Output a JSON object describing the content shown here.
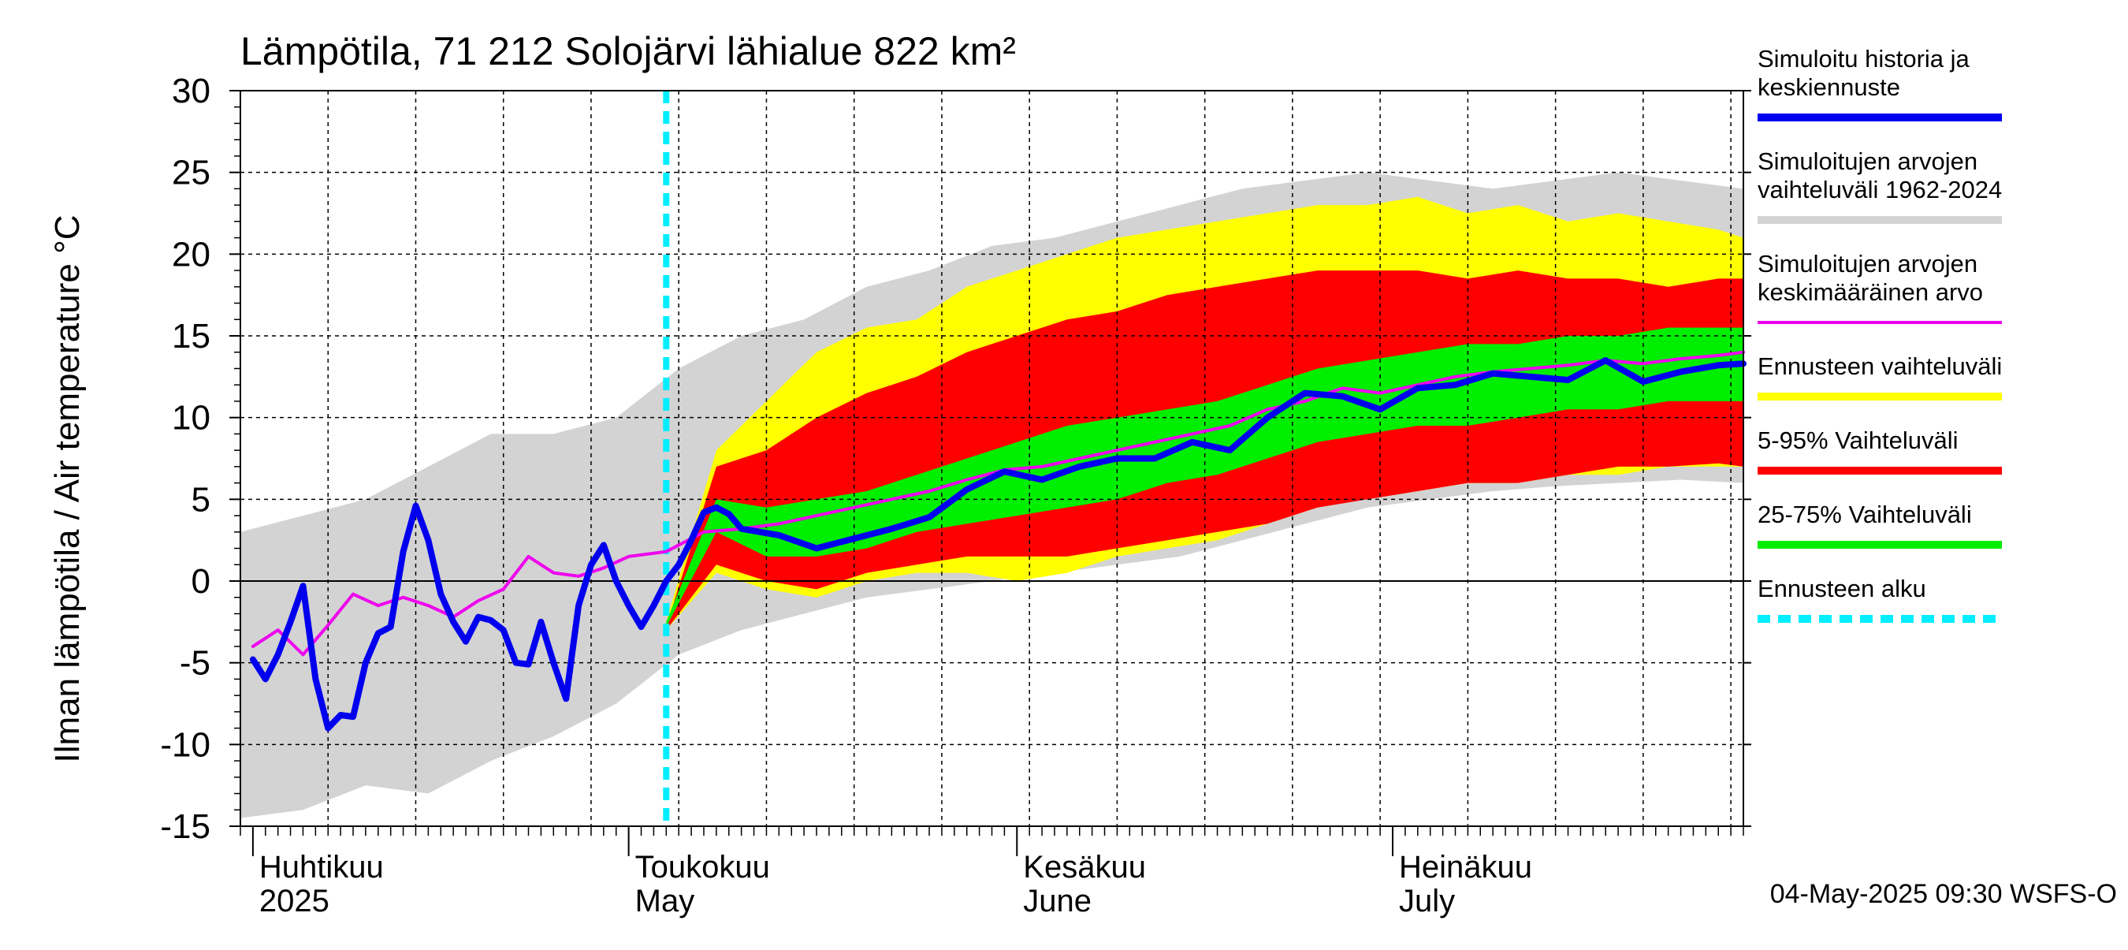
{
  "chart_data": {
    "type": "area",
    "title": "Lämpötila, 71 212 Solojärvi lähialue 822 km²",
    "ylabel": "Ilman lämpötila / Air temperature    °C",
    "ylim": [
      -15,
      30
    ],
    "yticks": [
      -15,
      -10,
      -5,
      0,
      5,
      10,
      15,
      20,
      25,
      30
    ],
    "xlim": [
      "2025-03-31",
      "2025-07-29"
    ],
    "grid": true,
    "forecast_start": "2025-05-04",
    "month_labels": [
      {
        "date": "2025-04-01",
        "line1": "Huhtikuu",
        "line2": "2025"
      },
      {
        "date": "2025-05-01",
        "line1": "Toukokuu",
        "line2": "May"
      },
      {
        "date": "2025-06-01",
        "line1": "Kesäkuu",
        "line2": "June"
      },
      {
        "date": "2025-07-01",
        "line1": "Heinäkuu",
        "line2": "July"
      }
    ],
    "timestamp": "04-May-2025 09:30 WSFS-O",
    "colors": {
      "history": "#0000ee",
      "range_hist": "#d3d3d3",
      "mean_hist": "#ee00ee",
      "forecast_range": "#ffff00",
      "p5_95": "#ff0000",
      "p25_75": "#00ee00",
      "forecast_start": "#00eeff"
    },
    "legend": [
      {
        "label": "Simuloitu historia ja keskiennuste",
        "color": "#0000ee",
        "style": "solid"
      },
      {
        "label": "Simuloitujen arvojen vaihteluväli 1962-2024",
        "color": "#d3d3d3",
        "style": "solid"
      },
      {
        "label": "Simuloitujen arvojen keskimääräinen arvo",
        "color": "#ee00ee",
        "style": "thin"
      },
      {
        "label": "Ennusteen vaihteluväli",
        "color": "#ffff00",
        "style": "solid"
      },
      {
        "label": "5-95% Vaihteluväli",
        "color": "#ff0000",
        "style": "solid"
      },
      {
        "label": "25-75% Vaihteluväli",
        "color": "#00ee00",
        "style": "solid"
      },
      {
        "label": "Ennusteen alku",
        "color": "#00eeff",
        "style": "dashed"
      }
    ],
    "series": [
      {
        "name": "Simuloitu historia ja keskiennuste",
        "x": [
          "2025-04-01",
          "2025-04-02",
          "2025-04-03",
          "2025-04-04",
          "2025-04-05",
          "2025-04-06",
          "2025-04-07",
          "2025-04-08",
          "2025-04-09",
          "2025-04-10",
          "2025-04-11",
          "2025-04-12",
          "2025-04-13",
          "2025-04-14",
          "2025-04-15",
          "2025-04-16",
          "2025-04-17",
          "2025-04-18",
          "2025-04-19",
          "2025-04-20",
          "2025-04-21",
          "2025-04-22",
          "2025-04-23",
          "2025-04-24",
          "2025-04-25",
          "2025-04-26",
          "2025-04-27",
          "2025-04-28",
          "2025-04-29",
          "2025-04-30",
          "2025-05-01",
          "2025-05-02",
          "2025-05-03",
          "2025-05-04",
          "2025-05-05",
          "2025-05-06",
          "2025-05-07",
          "2025-05-08",
          "2025-05-09",
          "2025-05-10",
          "2025-05-13",
          "2025-05-16",
          "2025-05-19",
          "2025-05-22",
          "2025-05-25",
          "2025-05-28",
          "2025-05-31",
          "2025-06-03",
          "2025-06-06",
          "2025-06-09",
          "2025-06-12",
          "2025-06-15",
          "2025-06-18",
          "2025-06-21",
          "2025-06-24",
          "2025-06-27",
          "2025-06-30",
          "2025-07-03",
          "2025-07-06",
          "2025-07-09",
          "2025-07-12",
          "2025-07-15",
          "2025-07-18",
          "2025-07-21",
          "2025-07-24",
          "2025-07-27",
          "2025-07-29"
        ],
        "y": [
          -4.8,
          -6.0,
          -4.5,
          -2.5,
          -0.3,
          -6.0,
          -9.0,
          -8.2,
          -8.3,
          -5.0,
          -3.2,
          -2.8,
          1.8,
          4.6,
          2.5,
          -0.8,
          -2.5,
          -3.7,
          -2.2,
          -2.4,
          -3.0,
          -5.0,
          -5.1,
          -2.5,
          -5.0,
          -7.2,
          -1.5,
          1.0,
          2.2,
          0.0,
          -1.5,
          -2.8,
          -1.5,
          0.0,
          1.0,
          2.5,
          4.2,
          4.5,
          4.1,
          3.2,
          2.8,
          2.0,
          2.6,
          3.2,
          3.9,
          5.6,
          6.7,
          6.2,
          7.0,
          7.5,
          7.5,
          8.5,
          8.0,
          10.0,
          11.5,
          11.3,
          10.5,
          11.8,
          12.0,
          12.7,
          12.5,
          12.3,
          13.5,
          12.2,
          12.8,
          13.2,
          13.3
        ]
      },
      {
        "name": "Simuloitujen arvojen keskimääräinen arvo",
        "x": [
          "2025-04-01",
          "2025-04-03",
          "2025-04-05",
          "2025-04-07",
          "2025-04-09",
          "2025-04-11",
          "2025-04-13",
          "2025-04-15",
          "2025-04-17",
          "2025-04-19",
          "2025-04-21",
          "2025-04-23",
          "2025-04-25",
          "2025-04-27",
          "2025-04-29",
          "2025-05-01",
          "2025-05-04",
          "2025-05-07",
          "2025-05-10",
          "2025-05-13",
          "2025-05-16",
          "2025-05-19",
          "2025-05-22",
          "2025-05-25",
          "2025-05-28",
          "2025-05-31",
          "2025-06-03",
          "2025-06-06",
          "2025-06-09",
          "2025-06-12",
          "2025-06-15",
          "2025-06-18",
          "2025-06-21",
          "2025-06-24",
          "2025-06-27",
          "2025-06-30",
          "2025-07-03",
          "2025-07-06",
          "2025-07-09",
          "2025-07-12",
          "2025-07-15",
          "2025-07-18",
          "2025-07-21",
          "2025-07-24",
          "2025-07-27",
          "2025-07-29"
        ],
        "y": [
          -4.0,
          -3.0,
          -4.5,
          -2.7,
          -0.8,
          -1.5,
          -1.0,
          -1.5,
          -2.2,
          -1.2,
          -0.5,
          1.5,
          0.5,
          0.3,
          0.8,
          1.5,
          1.8,
          3.0,
          3.2,
          3.5,
          4.0,
          4.5,
          5.0,
          5.5,
          6.2,
          6.8,
          7.0,
          7.5,
          8.0,
          8.5,
          9.0,
          9.5,
          10.5,
          11.0,
          11.8,
          11.5,
          12.0,
          12.5,
          12.8,
          13.0,
          13.2,
          13.5,
          13.3,
          13.6,
          13.8,
          14.0
        ]
      }
    ],
    "bands": [
      {
        "name": "Simuloitujen arvojen vaihteluväli 1962-2024",
        "x": [
          "2025-03-31",
          "2025-04-05",
          "2025-04-10",
          "2025-04-15",
          "2025-04-20",
          "2025-04-25",
          "2025-04-30",
          "2025-05-05",
          "2025-05-10",
          "2025-05-15",
          "2025-05-20",
          "2025-05-25",
          "2025-05-30",
          "2025-06-04",
          "2025-06-09",
          "2025-06-14",
          "2025-06-19",
          "2025-06-24",
          "2025-06-29",
          "2025-07-04",
          "2025-07-09",
          "2025-07-14",
          "2025-07-19",
          "2025-07-24",
          "2025-07-29"
        ],
        "lower": [
          -14.5,
          -14.0,
          -12.5,
          -13.0,
          -11.0,
          -9.5,
          -7.5,
          -4.5,
          -3.0,
          -2.0,
          -1.0,
          -0.5,
          0.0,
          0.5,
          1.0,
          1.5,
          2.5,
          3.5,
          4.5,
          5.0,
          5.5,
          5.8,
          6.0,
          6.2,
          6.0
        ],
        "upper": [
          3.0,
          4.0,
          5.0,
          7.0,
          9.0,
          9.0,
          10.0,
          13.0,
          15.0,
          16.0,
          18.0,
          19.0,
          20.5,
          21.0,
          22.0,
          23.0,
          24.0,
          24.5,
          25.0,
          24.5,
          24.0,
          24.5,
          25.0,
          24.5,
          24.0
        ]
      },
      {
        "name": "Ennusteen vaihteluväli",
        "x": [
          "2025-05-04",
          "2025-05-08",
          "2025-05-12",
          "2025-05-16",
          "2025-05-20",
          "2025-05-24",
          "2025-05-28",
          "2025-06-01",
          "2025-06-05",
          "2025-06-09",
          "2025-06-13",
          "2025-06-17",
          "2025-06-21",
          "2025-06-25",
          "2025-06-29",
          "2025-07-03",
          "2025-07-07",
          "2025-07-11",
          "2025-07-15",
          "2025-07-19",
          "2025-07-23",
          "2025-07-27",
          "2025-07-29"
        ],
        "lower": [
          -3.0,
          0.5,
          -0.5,
          -1.0,
          0.0,
          0.5,
          0.5,
          0.0,
          0.5,
          1.5,
          2.0,
          2.5,
          3.5,
          4.5,
          5.5,
          5.5,
          6.0,
          6.0,
          6.5,
          6.5,
          7.0,
          7.0,
          7.0
        ],
        "upper": [
          -2.5,
          8.0,
          11.0,
          14.0,
          15.5,
          16.0,
          18.0,
          19.0,
          20.0,
          21.0,
          21.5,
          22.0,
          22.5,
          23.0,
          23.0,
          23.5,
          22.5,
          23.0,
          22.0,
          22.5,
          22.0,
          21.5,
          21.0
        ]
      },
      {
        "name": "5-95% Vaihteluväli",
        "x": [
          "2025-05-04",
          "2025-05-08",
          "2025-05-12",
          "2025-05-16",
          "2025-05-20",
          "2025-05-24",
          "2025-05-28",
          "2025-06-01",
          "2025-06-05",
          "2025-06-09",
          "2025-06-13",
          "2025-06-17",
          "2025-06-21",
          "2025-06-25",
          "2025-06-29",
          "2025-07-03",
          "2025-07-07",
          "2025-07-11",
          "2025-07-15",
          "2025-07-19",
          "2025-07-23",
          "2025-07-27",
          "2025-07-29"
        ],
        "lower": [
          -3.0,
          1.0,
          0.0,
          -0.5,
          0.5,
          1.0,
          1.5,
          1.5,
          1.5,
          2.0,
          2.5,
          3.0,
          3.5,
          4.5,
          5.0,
          5.5,
          6.0,
          6.0,
          6.5,
          7.0,
          7.0,
          7.2,
          7.0
        ],
        "upper": [
          -2.8,
          7.0,
          8.0,
          10.0,
          11.5,
          12.5,
          14.0,
          15.0,
          16.0,
          16.5,
          17.5,
          18.0,
          18.5,
          19.0,
          19.0,
          19.0,
          18.5,
          19.0,
          18.5,
          18.5,
          18.0,
          18.5,
          18.5
        ]
      },
      {
        "name": "25-75% Vaihteluväli",
        "x": [
          "2025-05-04",
          "2025-05-08",
          "2025-05-12",
          "2025-05-16",
          "2025-05-20",
          "2025-05-24",
          "2025-05-28",
          "2025-06-01",
          "2025-06-05",
          "2025-06-09",
          "2025-06-13",
          "2025-06-17",
          "2025-06-21",
          "2025-06-25",
          "2025-06-29",
          "2025-07-03",
          "2025-07-07",
          "2025-07-11",
          "2025-07-15",
          "2025-07-19",
          "2025-07-23",
          "2025-07-27",
          "2025-07-29"
        ],
        "lower": [
          -2.8,
          3.0,
          1.5,
          1.5,
          2.0,
          3.0,
          3.5,
          4.0,
          4.5,
          5.0,
          6.0,
          6.5,
          7.5,
          8.5,
          9.0,
          9.5,
          9.5,
          10.0,
          10.5,
          10.5,
          11.0,
          11.0,
          11.0
        ],
        "upper": [
          -2.5,
          5.0,
          4.5,
          5.0,
          5.5,
          6.5,
          7.5,
          8.5,
          9.5,
          10.0,
          10.5,
          11.0,
          12.0,
          13.0,
          13.5,
          14.0,
          14.5,
          14.5,
          15.0,
          15.0,
          15.5,
          15.5,
          15.5
        ]
      }
    ]
  }
}
